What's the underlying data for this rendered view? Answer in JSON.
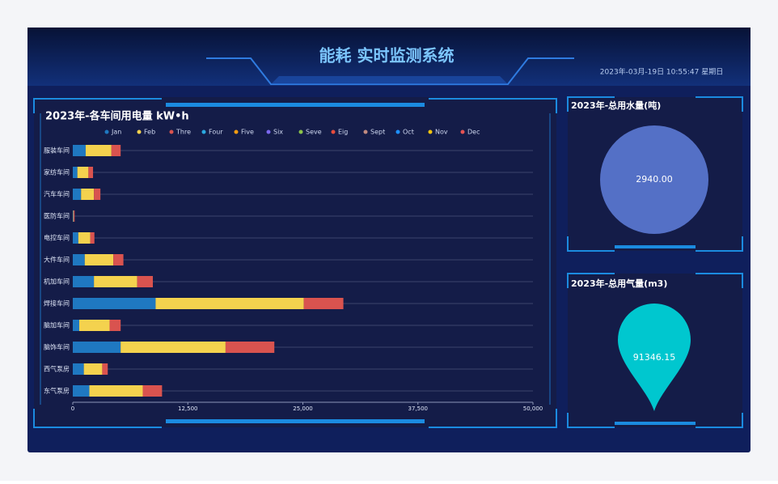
{
  "header": {
    "title": "能耗 实时监测系统",
    "datetime": "2023年-03月-19日 10:55:47 星期日"
  },
  "chart_data": [
    {
      "type": "hbar-stacked",
      "title": "2023年-各车间用电量 kW•h",
      "categories": [
        "服装车间",
        "家纺车间",
        "汽车车间",
        "医防车间",
        "电控车间",
        "大件车间",
        "机加车间",
        "焊接车间",
        "脑加车间",
        "脑饰车间",
        "西气泵房",
        "东气泵房"
      ],
      "series": [
        {
          "name": "Jan",
          "color": "#1f78c1",
          "values": [
            1400,
            500,
            900,
            50,
            600,
            1300,
            2300,
            9000,
            700,
            5200,
            1200,
            1800
          ]
        },
        {
          "name": "Feb",
          "color": "#f4d24e",
          "values": [
            2800,
            1200,
            1400,
            50,
            1300,
            3100,
            4700,
            16100,
            3300,
            11400,
            2000,
            5800
          ]
        },
        {
          "name": "Thre",
          "color": "#d9534f",
          "values": [
            1000,
            500,
            700,
            100,
            450,
            1100,
            1700,
            4300,
            1200,
            5300,
            600,
            2100
          ]
        },
        {
          "name": "Four",
          "color": "#2aa8e0",
          "values": [
            0,
            0,
            0,
            0,
            0,
            0,
            0,
            0,
            0,
            0,
            0,
            0
          ]
        },
        {
          "name": "Five",
          "color": "#f39c12",
          "values": [
            0,
            0,
            0,
            0,
            0,
            0,
            0,
            0,
            0,
            0,
            0,
            0
          ]
        },
        {
          "name": "Six",
          "color": "#7b68ee",
          "values": [
            0,
            0,
            0,
            0,
            0,
            0,
            0,
            0,
            0,
            0,
            0,
            0
          ]
        },
        {
          "name": "Seve",
          "color": "#8bc34a",
          "values": [
            0,
            0,
            0,
            0,
            0,
            0,
            0,
            0,
            0,
            0,
            0,
            0
          ]
        },
        {
          "name": "Eig",
          "color": "#e74c3c",
          "values": [
            0,
            0,
            0,
            0,
            0,
            0,
            0,
            0,
            0,
            0,
            0,
            0
          ]
        },
        {
          "name": "Sept",
          "color": "#c08a80",
          "values": [
            0,
            0,
            0,
            0,
            0,
            0,
            0,
            0,
            0,
            0,
            0,
            0
          ]
        },
        {
          "name": "Oct",
          "color": "#1e90ff",
          "values": [
            0,
            0,
            0,
            0,
            0,
            0,
            0,
            0,
            0,
            0,
            0,
            0
          ]
        },
        {
          "name": "Nov",
          "color": "#f1c40f",
          "values": [
            0,
            0,
            0,
            0,
            0,
            0,
            0,
            0,
            0,
            0,
            0,
            0
          ]
        },
        {
          "name": "Dec",
          "color": "#e55353",
          "values": [
            0,
            0,
            0,
            0,
            0,
            0,
            0,
            0,
            0,
            0,
            0,
            0
          ]
        }
      ],
      "xlim": [
        0,
        50000
      ],
      "xticks": [
        0,
        {
          "value": 12500,
          "label": "12,500"
        },
        {
          "value": 25000,
          "label": "25,000"
        },
        {
          "value": 37500,
          "label": "37,500"
        },
        {
          "value": 50000,
          "label": "50,000"
        }
      ]
    },
    {
      "type": "circle",
      "title": "2023年-总用水量(吨)",
      "values": [
        2940
      ],
      "value_labels": [
        "2940.00"
      ],
      "color": "#5470c6"
    },
    {
      "type": "pin",
      "title": "2023年-总用气量(m3)",
      "values": [
        91346.15
      ],
      "color": "#00c7cf"
    }
  ]
}
